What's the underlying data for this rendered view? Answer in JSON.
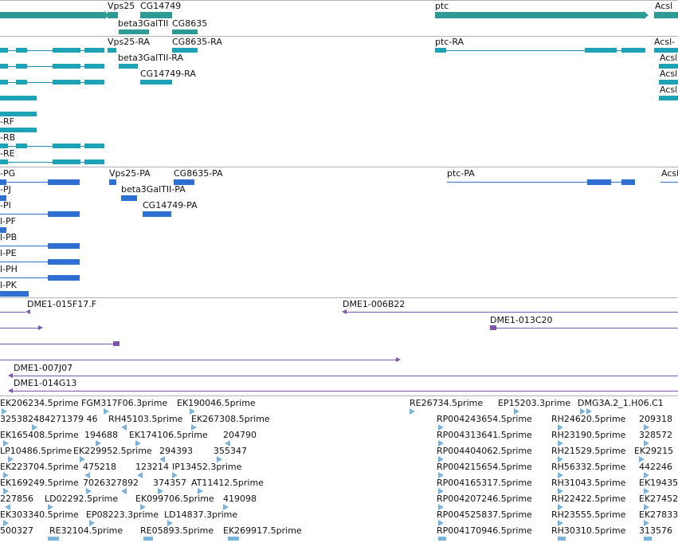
{
  "gene_track": {
    "labels": [
      "Vps25",
      "CG14749",
      "beta3GalTII",
      "CG8635",
      "ptc",
      "Acsl"
    ]
  },
  "transcript_track": {
    "labels": [
      "Vps25-RA",
      "CG8635-RA",
      "beta3GalTII-RA",
      "CG14749-RA",
      "ptc-RA",
      "Acsl-",
      "Acsl",
      "Acsl",
      "Acsl",
      "-RF",
      "-RB",
      "-RE"
    ]
  },
  "protein_track": {
    "labels": [
      "-PG",
      "Vps25-PA",
      "CG8635-PA",
      "ptc-PA",
      "Acsl",
      "-PJ",
      "beta3GalTII-PA",
      "-PI",
      "CG14749-PA",
      "l-PF",
      "l-PB",
      "l-PE",
      "l-PH",
      "l-PK"
    ]
  },
  "clone_track": {
    "labels": [
      "DME1-015F17.F",
      "DME1-006B22",
      "DME1-013C20",
      "DME1-007J07",
      "DME1-014G13"
    ]
  },
  "est_track": {
    "labels": [
      "EK206234.5prime",
      "FGM317F06.3prime",
      "EK190046.5prime",
      "RE26734.5prime",
      "EP15203.3prime",
      "DMG3A.2_1.H06.C1",
      "325382484271379 46",
      "RH45103.5prime",
      "EK267308.5prime",
      "RP004243654.5prime",
      "RH24620.5prime",
      "209318",
      "EK165408.5prime",
      "194688",
      "EK174106.5prime",
      "204790",
      "RP004313641.5prime",
      "RH23190.5prime",
      "328572",
      "LP10486.5prime",
      "EK229952.5prime",
      "294393",
      "355347",
      "RP004404062.5prime",
      "RH21529.5prime",
      "EK29215",
      "EK223704.5prime",
      "475218",
      "123214",
      "IP13452.3prime",
      "RP004215654.5prime",
      "RH56332.5prime",
      "442246",
      "EK169249.5prime",
      "7026327892",
      "374357",
      "AT11412.5prime",
      "RP004165317.5prime",
      "RH31043.5prime",
      "EK19435",
      "227856",
      "LD02292.5prime",
      "EK099706.5prime",
      "419098",
      "RP004207246.5prime",
      "RH22422.5prime",
      "EK27452",
      "EK303340.5prime",
      "EP08223.3prime",
      "LD14837.3prime",
      "RP004525837.5prime",
      "RH23555.5prime",
      "EK27833",
      "500327",
      "RE32104.5prime",
      "RE05893.5prime",
      "EK269917.5prime",
      "RP004170946.5prime",
      "RH30310.5prime",
      "313576"
    ]
  },
  "colors": {
    "gene": "#2e9a96",
    "transcript": "#1ea2b6",
    "protein": "#2f6fd1",
    "clone": "#7a55a8",
    "est": "#7ab4d8"
  }
}
